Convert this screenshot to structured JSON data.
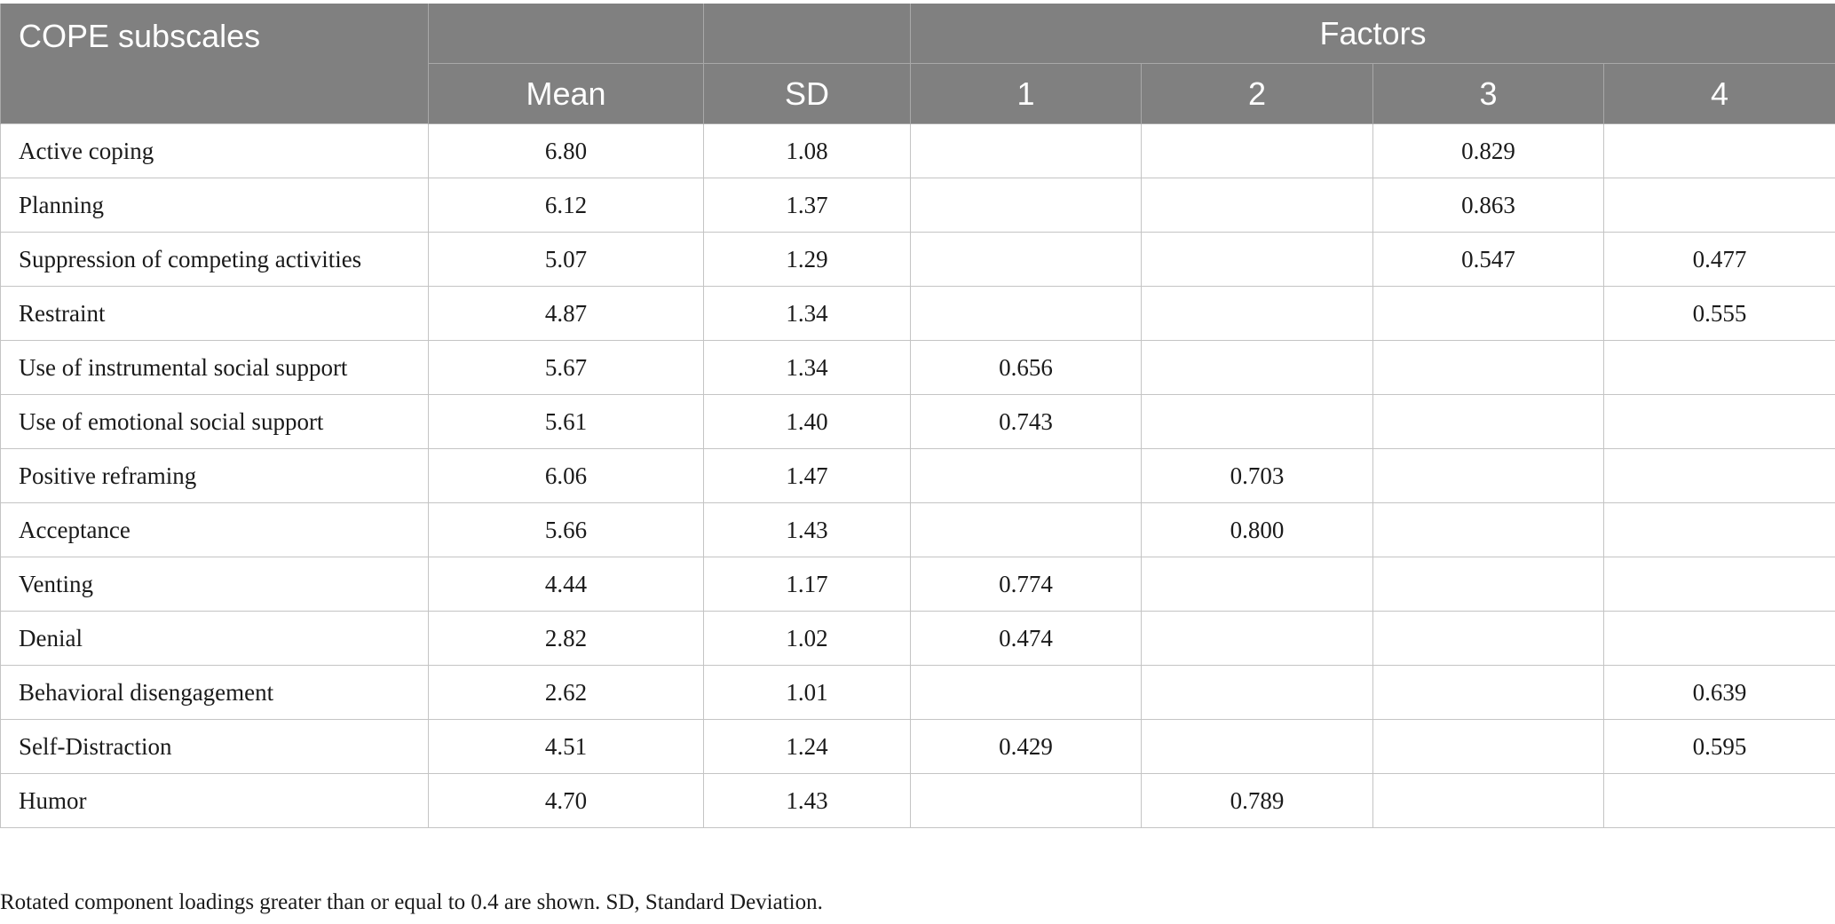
{
  "table": {
    "header": {
      "subscales_label": "COPE subscales",
      "factors_label": "Factors",
      "mean_label": "Mean",
      "sd_label": "SD",
      "factor_numbers": [
        "1",
        "2",
        "3",
        "4"
      ]
    },
    "rows": [
      {
        "label": "Active coping",
        "mean": "6.80",
        "sd": "1.08",
        "f1": "",
        "f2": "",
        "f3": "0.829",
        "f4": ""
      },
      {
        "label": "Planning",
        "mean": "6.12",
        "sd": "1.37",
        "f1": "",
        "f2": "",
        "f3": "0.863",
        "f4": ""
      },
      {
        "label": "Suppression of competing activities",
        "mean": "5.07",
        "sd": "1.29",
        "f1": "",
        "f2": "",
        "f3": "0.547",
        "f4": "0.477"
      },
      {
        "label": "Restraint",
        "mean": "4.87",
        "sd": "1.34",
        "f1": "",
        "f2": "",
        "f3": "",
        "f4": "0.555"
      },
      {
        "label": "Use of instrumental social support",
        "mean": "5.67",
        "sd": "1.34",
        "f1": "0.656",
        "f2": "",
        "f3": "",
        "f4": ""
      },
      {
        "label": "Use of emotional social support",
        "mean": "5.61",
        "sd": "1.40",
        "f1": "0.743",
        "f2": "",
        "f3": "",
        "f4": ""
      },
      {
        "label": "Positive reframing",
        "mean": "6.06",
        "sd": "1.47",
        "f1": "",
        "f2": "0.703",
        "f3": "",
        "f4": ""
      },
      {
        "label": "Acceptance",
        "mean": "5.66",
        "sd": "1.43",
        "f1": "",
        "f2": "0.800",
        "f3": "",
        "f4": ""
      },
      {
        "label": "Venting",
        "mean": "4.44",
        "sd": "1.17",
        "f1": "0.774",
        "f2": "",
        "f3": "",
        "f4": ""
      },
      {
        "label": "Denial",
        "mean": "2.82",
        "sd": "1.02",
        "f1": "0.474",
        "f2": "",
        "f3": "",
        "f4": ""
      },
      {
        "label": "Behavioral disengagement",
        "mean": "2.62",
        "sd": "1.01",
        "f1": "",
        "f2": "",
        "f3": "",
        "f4": "0.639"
      },
      {
        "label": "Self-Distraction",
        "mean": "4.51",
        "sd": "1.24",
        "f1": "0.429",
        "f2": "",
        "f3": "",
        "f4": "0.595"
      },
      {
        "label": "Humor",
        "mean": "4.70",
        "sd": "1.43",
        "f1": "",
        "f2": "0.789",
        "f3": "",
        "f4": ""
      }
    ]
  },
  "footnote": "Rotated component loadings greater than or equal to 0.4 are shown. SD, Standard Deviation.",
  "colors": {
    "header_bg": "#808080",
    "header_text": "#ffffff",
    "grid_line": "#c4c4c4"
  }
}
